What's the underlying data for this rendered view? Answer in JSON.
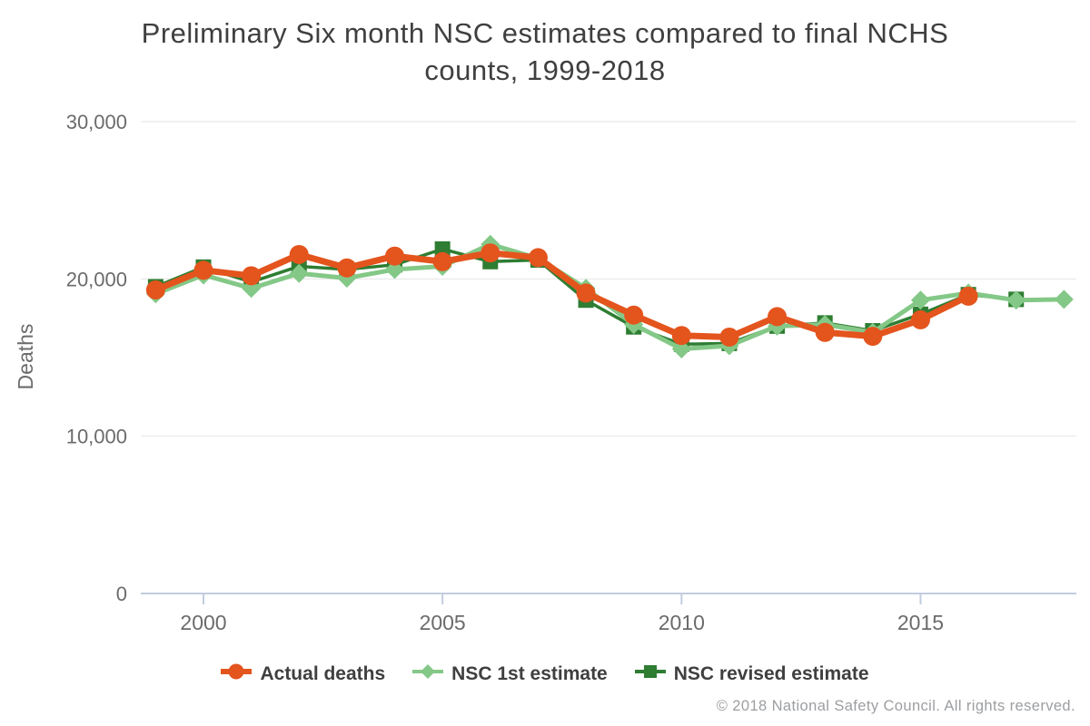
{
  "title": {
    "line1": "Preliminary Six month NSC estimates compared to final NCHS",
    "line2": "counts, 1999-2018"
  },
  "axes": {
    "y": {
      "label": "Deaths",
      "ticks": [
        {
          "value": 0,
          "label": "0"
        },
        {
          "value": 10000,
          "label": "10,000"
        },
        {
          "value": 20000,
          "label": "20,000"
        },
        {
          "value": 30000,
          "label": "30,000"
        }
      ]
    },
    "x": {
      "ticks": [
        {
          "value": 2000,
          "label": "2000"
        },
        {
          "value": 2005,
          "label": "2005"
        },
        {
          "value": 2010,
          "label": "2010"
        },
        {
          "value": 2015,
          "label": "2015"
        }
      ]
    }
  },
  "footer": {
    "text": "© 2018 National Safety Council. All rights reserved."
  },
  "colors": {
    "actual": "#e4541d",
    "first_estimate": "#84c887",
    "revised_estimate": "#2e7d32",
    "axis_line": "#c2cce0",
    "gridline": "#e6e6e6",
    "axis_text": "#6b6b6b",
    "title_text": "#3f3f3f",
    "footer_text": "#9c9ea1"
  },
  "chart_data": {
    "type": "line",
    "title": "Preliminary Six month NSC estimates compared to final NCHS counts, 1999-2018",
    "xlabel": "",
    "ylabel": "Deaths",
    "ylim": [
      0,
      30000
    ],
    "grid": true,
    "legend_position": "bottom",
    "x": [
      1999,
      2000,
      2001,
      2002,
      2003,
      2004,
      2005,
      2006,
      2007,
      2008,
      2009,
      2010,
      2011,
      2012,
      2013,
      2014,
      2015,
      2016,
      2017,
      2018
    ],
    "series": [
      {
        "name": "NSC revised estimate",
        "marker": "square",
        "color": "#2e7d32",
        "values": [
          19500,
          20750,
          19800,
          20800,
          20600,
          20900,
          21900,
          21100,
          21200,
          18650,
          16950,
          15850,
          15900,
          17000,
          17200,
          16700,
          17750,
          19000,
          18700,
          null
        ]
      },
      {
        "name": "NSC 1st estimate",
        "marker": "diamond",
        "color": "#84c887",
        "values": [
          19050,
          20250,
          19400,
          20350,
          20050,
          20600,
          20800,
          22200,
          21300,
          19400,
          17100,
          15550,
          15750,
          17000,
          17100,
          16600,
          18650,
          19100,
          18650,
          18700
        ]
      },
      {
        "name": "Actual deaths",
        "marker": "circle",
        "color": "#e4541d",
        "values": [
          19300,
          20550,
          20200,
          21550,
          20700,
          21450,
          21100,
          21650,
          21350,
          19100,
          17700,
          16400,
          16300,
          17600,
          16600,
          16350,
          17400,
          18900,
          null,
          null
        ]
      }
    ]
  }
}
